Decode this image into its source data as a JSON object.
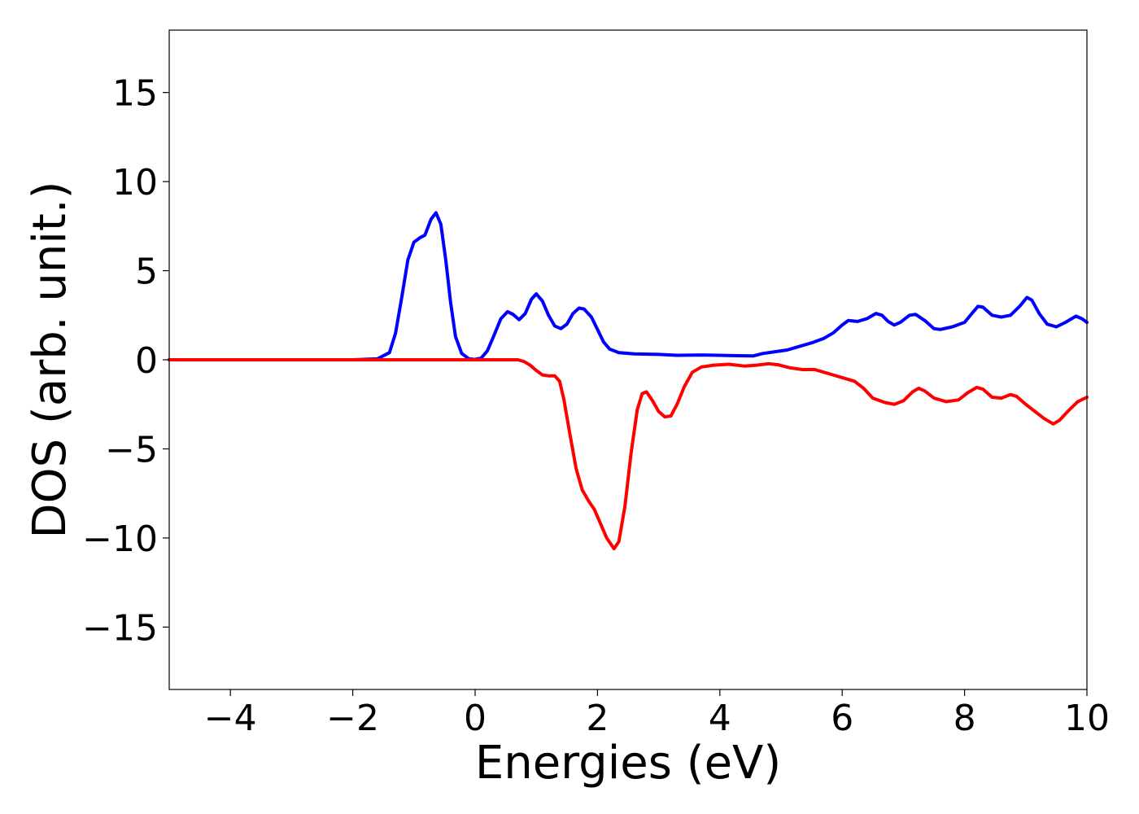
{
  "chart_data": {
    "type": "line",
    "title": "",
    "xlabel": "Energies (eV)",
    "ylabel": "DOS (arb. unit.)",
    "xlim": [
      -5,
      10
    ],
    "ylim": [
      -18.5,
      18.5
    ],
    "x_ticks": [
      -4,
      -2,
      0,
      2,
      4,
      6,
      8,
      10
    ],
    "x_tick_labels": [
      "−4",
      "−2",
      "0",
      "2",
      "4",
      "6",
      "8",
      "10"
    ],
    "y_ticks": [
      -15,
      -10,
      -5,
      0,
      5,
      10,
      15
    ],
    "y_tick_labels": [
      "−15",
      "−10",
      "−5",
      "0",
      "5",
      "10",
      "15"
    ],
    "grid": false,
    "legend": "none",
    "series": [
      {
        "color": "#0000ff",
        "points": [
          [
            -5,
            0
          ],
          [
            -2,
            0
          ],
          [
            -1.6,
            0.05
          ],
          [
            -1.4,
            0.4
          ],
          [
            -1.3,
            1.5
          ],
          [
            -1.2,
            3.5
          ],
          [
            -1.1,
            5.6
          ],
          [
            -1.0,
            6.6
          ],
          [
            -0.9,
            6.85
          ],
          [
            -0.82,
            7.0
          ],
          [
            -0.72,
            7.9
          ],
          [
            -0.64,
            8.25
          ],
          [
            -0.56,
            7.6
          ],
          [
            -0.48,
            5.6
          ],
          [
            -0.4,
            3.2
          ],
          [
            -0.32,
            1.3
          ],
          [
            -0.22,
            0.35
          ],
          [
            -0.1,
            0.05
          ],
          [
            0,
            0.02
          ],
          [
            0.1,
            0.1
          ],
          [
            0.2,
            0.5
          ],
          [
            0.3,
            1.3
          ],
          [
            0.42,
            2.3
          ],
          [
            0.53,
            2.7
          ],
          [
            0.62,
            2.55
          ],
          [
            0.72,
            2.25
          ],
          [
            0.82,
            2.6
          ],
          [
            0.92,
            3.4
          ],
          [
            1.0,
            3.7
          ],
          [
            1.1,
            3.3
          ],
          [
            1.2,
            2.5
          ],
          [
            1.3,
            1.9
          ],
          [
            1.4,
            1.75
          ],
          [
            1.5,
            2.0
          ],
          [
            1.6,
            2.6
          ],
          [
            1.7,
            2.9
          ],
          [
            1.78,
            2.85
          ],
          [
            1.9,
            2.4
          ],
          [
            2.0,
            1.7
          ],
          [
            2.1,
            1.0
          ],
          [
            2.2,
            0.6
          ],
          [
            2.35,
            0.4
          ],
          [
            2.6,
            0.33
          ],
          [
            3.0,
            0.3
          ],
          [
            3.3,
            0.25
          ],
          [
            3.7,
            0.27
          ],
          [
            4.0,
            0.25
          ],
          [
            4.3,
            0.23
          ],
          [
            4.55,
            0.22
          ],
          [
            4.7,
            0.35
          ],
          [
            4.9,
            0.45
          ],
          [
            5.1,
            0.55
          ],
          [
            5.3,
            0.75
          ],
          [
            5.5,
            0.95
          ],
          [
            5.7,
            1.2
          ],
          [
            5.85,
            1.5
          ],
          [
            6.0,
            1.95
          ],
          [
            6.1,
            2.2
          ],
          [
            6.25,
            2.15
          ],
          [
            6.4,
            2.3
          ],
          [
            6.55,
            2.6
          ],
          [
            6.65,
            2.5
          ],
          [
            6.75,
            2.15
          ],
          [
            6.85,
            1.95
          ],
          [
            6.95,
            2.1
          ],
          [
            7.1,
            2.5
          ],
          [
            7.2,
            2.55
          ],
          [
            7.35,
            2.2
          ],
          [
            7.5,
            1.75
          ],
          [
            7.6,
            1.7
          ],
          [
            7.8,
            1.85
          ],
          [
            8.0,
            2.1
          ],
          [
            8.12,
            2.6
          ],
          [
            8.22,
            3.0
          ],
          [
            8.3,
            2.95
          ],
          [
            8.45,
            2.5
          ],
          [
            8.6,
            2.4
          ],
          [
            8.75,
            2.5
          ],
          [
            8.9,
            3.0
          ],
          [
            9.02,
            3.5
          ],
          [
            9.1,
            3.35
          ],
          [
            9.22,
            2.6
          ],
          [
            9.35,
            2.0
          ],
          [
            9.5,
            1.85
          ],
          [
            9.65,
            2.1
          ],
          [
            9.82,
            2.45
          ],
          [
            9.92,
            2.3
          ],
          [
            10.0,
            2.1
          ]
        ]
      },
      {
        "color": "#ff0000",
        "points": [
          [
            -5,
            0
          ],
          [
            0.7,
            0
          ],
          [
            0.8,
            -0.1
          ],
          [
            0.9,
            -0.3
          ],
          [
            1.0,
            -0.6
          ],
          [
            1.1,
            -0.85
          ],
          [
            1.2,
            -0.9
          ],
          [
            1.3,
            -0.9
          ],
          [
            1.38,
            -1.2
          ],
          [
            1.45,
            -2.2
          ],
          [
            1.55,
            -4.2
          ],
          [
            1.65,
            -6.1
          ],
          [
            1.75,
            -7.3
          ],
          [
            1.85,
            -7.9
          ],
          [
            1.95,
            -8.4
          ],
          [
            2.05,
            -9.2
          ],
          [
            2.15,
            -10.0
          ],
          [
            2.27,
            -10.6
          ],
          [
            2.35,
            -10.2
          ],
          [
            2.45,
            -8.2
          ],
          [
            2.55,
            -5.2
          ],
          [
            2.65,
            -2.8
          ],
          [
            2.73,
            -1.9
          ],
          [
            2.8,
            -1.8
          ],
          [
            2.9,
            -2.3
          ],
          [
            3.0,
            -2.9
          ],
          [
            3.1,
            -3.2
          ],
          [
            3.2,
            -3.15
          ],
          [
            3.3,
            -2.5
          ],
          [
            3.42,
            -1.5
          ],
          [
            3.55,
            -0.7
          ],
          [
            3.7,
            -0.4
          ],
          [
            3.9,
            -0.3
          ],
          [
            4.15,
            -0.25
          ],
          [
            4.4,
            -0.35
          ],
          [
            4.6,
            -0.3
          ],
          [
            4.8,
            -0.22
          ],
          [
            4.95,
            -0.28
          ],
          [
            5.15,
            -0.45
          ],
          [
            5.35,
            -0.55
          ],
          [
            5.55,
            -0.55
          ],
          [
            5.8,
            -0.8
          ],
          [
            6.0,
            -1.0
          ],
          [
            6.2,
            -1.2
          ],
          [
            6.35,
            -1.6
          ],
          [
            6.5,
            -2.15
          ],
          [
            6.7,
            -2.4
          ],
          [
            6.85,
            -2.5
          ],
          [
            7.0,
            -2.3
          ],
          [
            7.15,
            -1.8
          ],
          [
            7.25,
            -1.6
          ],
          [
            7.35,
            -1.75
          ],
          [
            7.5,
            -2.15
          ],
          [
            7.7,
            -2.35
          ],
          [
            7.9,
            -2.25
          ],
          [
            8.05,
            -1.85
          ],
          [
            8.2,
            -1.55
          ],
          [
            8.3,
            -1.65
          ],
          [
            8.45,
            -2.1
          ],
          [
            8.6,
            -2.15
          ],
          [
            8.75,
            -1.95
          ],
          [
            8.85,
            -2.05
          ],
          [
            9.0,
            -2.5
          ],
          [
            9.15,
            -2.9
          ],
          [
            9.3,
            -3.3
          ],
          [
            9.45,
            -3.6
          ],
          [
            9.55,
            -3.4
          ],
          [
            9.7,
            -2.85
          ],
          [
            9.85,
            -2.35
          ],
          [
            10.0,
            -2.1
          ]
        ]
      }
    ]
  }
}
